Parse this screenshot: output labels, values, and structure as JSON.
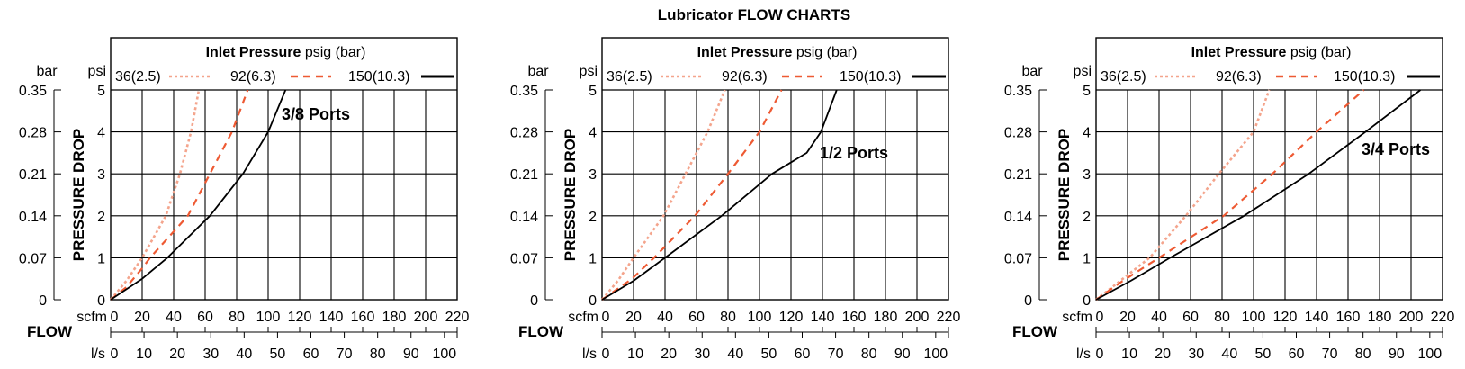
{
  "title": "Lubricator FLOW CHARTS",
  "colors": {
    "p36": "#f4a48c",
    "p92": "#ee5a33",
    "p150": "#000000",
    "grid": "#000000"
  },
  "chart_data": [
    {
      "type": "line",
      "annotation": "3/8 Ports",
      "legend_title_bold": "Inlet Pressure",
      "legend_title_rest": " psig (bar)",
      "y_label": "PRESSURE DROP",
      "y_unit_psi": "psi",
      "y_unit_bar": "bar",
      "x_label": "FLOW",
      "x_unit_scfm": "scfm",
      "x_unit_ls": "l/s",
      "xlim": [
        0,
        220
      ],
      "ylim": [
        0,
        5
      ],
      "grid": true,
      "psi_ticks": [
        "0",
        "1",
        "2",
        "3",
        "4",
        "5"
      ],
      "bar_ticks": [
        "0",
        "0.07",
        "0.14",
        "0.21",
        "0.28",
        "0.35"
      ],
      "scfm_ticks": [
        "0",
        "20",
        "40",
        "60",
        "80",
        "100",
        "120",
        "140",
        "160",
        "180",
        "200",
        "220"
      ],
      "ls_ticks": [
        "0",
        "10",
        "20",
        "30",
        "40",
        "50",
        "60",
        "70",
        "80",
        "90",
        "100"
      ],
      "series": [
        {
          "name": "36(2.5)",
          "style": "dotted",
          "points": [
            [
              0,
              0
            ],
            [
              10,
              0.45
            ],
            [
              20,
              1.0
            ],
            [
              35,
              2.0
            ],
            [
              44,
              3.0
            ],
            [
              51,
              4.0
            ],
            [
              56,
              5.0
            ]
          ]
        },
        {
          "name": "92(6.3)",
          "style": "dashed",
          "points": [
            [
              0,
              0
            ],
            [
              10,
              0.3
            ],
            [
              20,
              0.75
            ],
            [
              25,
              1.0
            ],
            [
              49,
              2.0
            ],
            [
              63,
              3.0
            ],
            [
              77,
              4.0
            ],
            [
              87,
              5.0
            ]
          ]
        },
        {
          "name": "150(10.3)",
          "style": "solid",
          "points": [
            [
              0,
              0
            ],
            [
              20,
              0.5
            ],
            [
              36,
              1.0
            ],
            [
              63,
              2.0
            ],
            [
              84,
              3.0
            ],
            [
              100,
              4.0
            ],
            [
              111,
              5.0
            ]
          ]
        }
      ]
    },
    {
      "type": "line",
      "annotation": "1/2 Ports",
      "legend_title_bold": "Inlet Pressure",
      "legend_title_rest": " psig (bar)",
      "y_label": "PRESSURE DROP",
      "y_unit_psi": "psi",
      "y_unit_bar": "bar",
      "x_label": "FLOW",
      "x_unit_scfm": "scfm",
      "x_unit_ls": "l/s",
      "xlim": [
        0,
        220
      ],
      "ylim": [
        0,
        5
      ],
      "grid": true,
      "psi_ticks": [
        "0",
        "1",
        "2",
        "3",
        "4",
        "5"
      ],
      "bar_ticks": [
        "0",
        "0.07",
        "0.14",
        "0.21",
        "0.28",
        "0.35"
      ],
      "scfm_ticks": [
        "0",
        "20",
        "40",
        "60",
        "80",
        "100",
        "120",
        "140",
        "160",
        "180",
        "200",
        "220"
      ],
      "ls_ticks": [
        "0",
        "10",
        "20",
        "30",
        "40",
        "50",
        "60",
        "70",
        "80",
        "90",
        "100"
      ],
      "series": [
        {
          "name": "36(2.5)",
          "style": "dotted",
          "points": [
            [
              0,
              0
            ],
            [
              10,
              0.45
            ],
            [
              20,
              1.0
            ],
            [
              39,
              2.0
            ],
            [
              53,
              3.0
            ],
            [
              67,
              4.0
            ],
            [
              78,
              5.0
            ]
          ]
        },
        {
          "name": "92(6.3)",
          "style": "dashed",
          "points": [
            [
              0,
              0
            ],
            [
              19,
              0.5
            ],
            [
              33,
              1.0
            ],
            [
              59,
              2.0
            ],
            [
              80,
              3.0
            ],
            [
              100,
              4.0
            ],
            [
              114,
              5.0
            ]
          ]
        },
        {
          "name": "150(10.3)",
          "style": "solid",
          "points": [
            [
              0,
              0
            ],
            [
              20,
              0.45
            ],
            [
              40,
              1.0
            ],
            [
              76,
              2.0
            ],
            [
              108,
              3.0
            ],
            [
              130,
              3.5
            ],
            [
              139,
              4.0
            ],
            [
              149,
              5.0
            ]
          ]
        }
      ]
    },
    {
      "type": "line",
      "annotation": "3/4 Ports",
      "legend_title_bold": "Inlet Pressure",
      "legend_title_rest": " psig (bar)",
      "y_label": "PRESSURE DROP",
      "y_unit_psi": "psi",
      "y_unit_bar": "bar",
      "x_label": "FLOW",
      "x_unit_scfm": "scfm",
      "x_unit_ls": "l/s",
      "xlim": [
        0,
        220
      ],
      "ylim": [
        0,
        5
      ],
      "grid": true,
      "psi_ticks": [
        "0",
        "1",
        "2",
        "3",
        "4",
        "5"
      ],
      "bar_ticks": [
        "0",
        "0.07",
        "0.14",
        "0.21",
        "0.28",
        "0.35"
      ],
      "scfm_ticks": [
        "0",
        "20",
        "40",
        "60",
        "80",
        "100",
        "120",
        "140",
        "160",
        "180",
        "200",
        "220"
      ],
      "ls_ticks": [
        "0",
        "10",
        "20",
        "30",
        "40",
        "50",
        "60",
        "70",
        "80",
        "90",
        "100"
      ],
      "series": [
        {
          "name": "36(2.5)",
          "style": "dotted",
          "points": [
            [
              0,
              0
            ],
            [
              17,
              0.5
            ],
            [
              34,
              1.0
            ],
            [
              57,
              2.0
            ],
            [
              78,
              3.0
            ],
            [
              100,
              4.0
            ],
            [
              110,
              5.0
            ]
          ]
        },
        {
          "name": "92(6.3)",
          "style": "dashed",
          "points": [
            [
              0,
              0
            ],
            [
              17,
              0.45
            ],
            [
              40,
              1.0
            ],
            [
              81,
              2.0
            ],
            [
              112,
              3.0
            ],
            [
              140,
              4.0
            ],
            [
              170,
              5.0
            ]
          ]
        },
        {
          "name": "150(10.3)",
          "style": "solid",
          "points": [
            [
              0,
              0
            ],
            [
              22,
              0.45
            ],
            [
              47,
              1.0
            ],
            [
              94,
              2.0
            ],
            [
              135,
              3.0
            ],
            [
              171,
              4.0
            ],
            [
              206,
              5.0
            ]
          ]
        }
      ]
    }
  ]
}
